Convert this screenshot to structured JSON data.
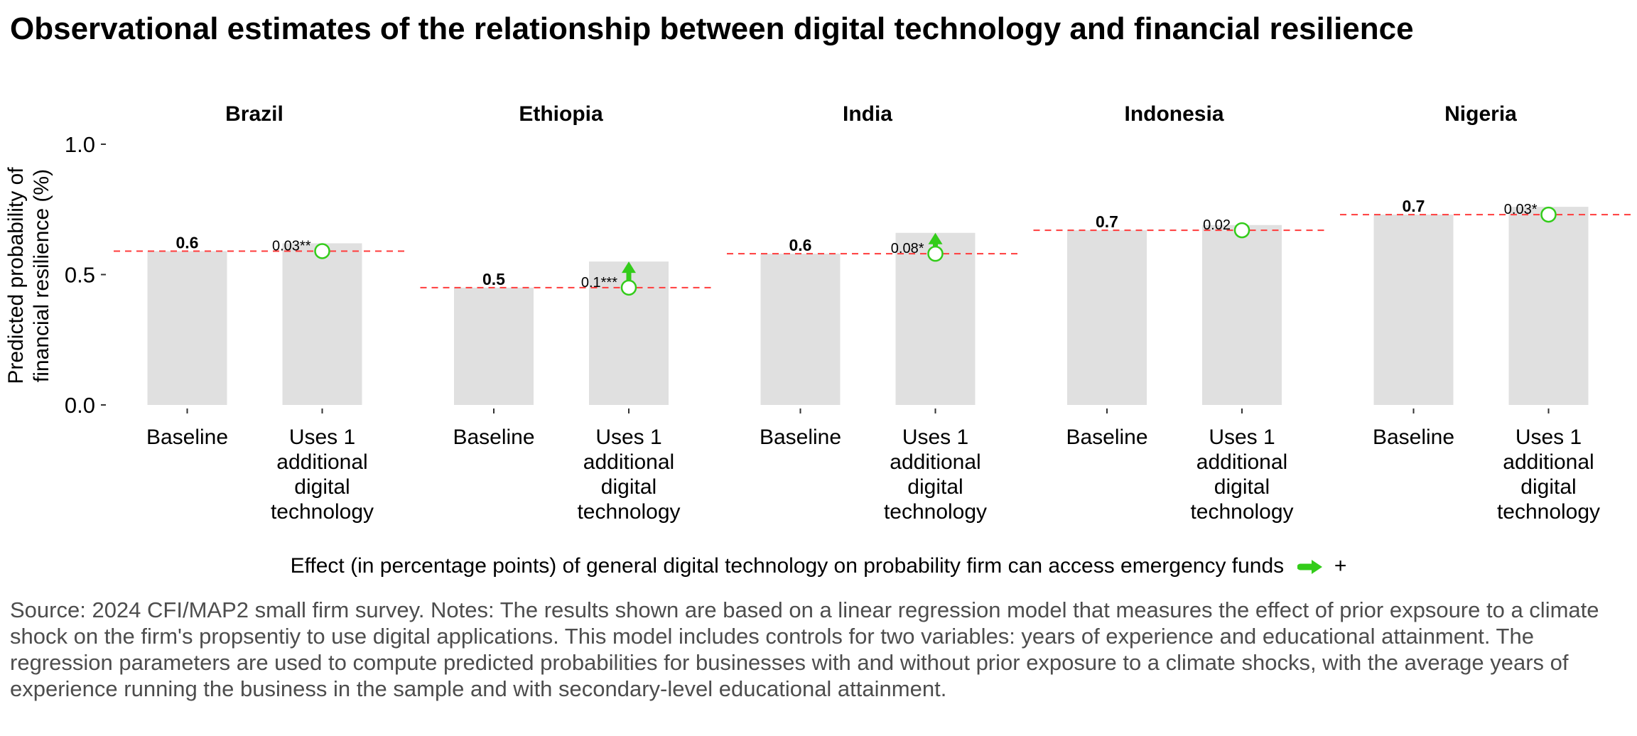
{
  "title": "Observational estimates of the relationship between digital technology and financial resilience",
  "chart_data": {
    "type": "bar",
    "facets": [
      "Brazil",
      "Ethiopia",
      "India",
      "Indonesia",
      "Nigeria"
    ],
    "categories": [
      "Baseline",
      "Uses 1 additional digital technology"
    ],
    "category_lines": {
      "baseline": [
        "Baseline"
      ],
      "treatment": [
        "Uses 1",
        "additional",
        "digital",
        "technology"
      ]
    },
    "series": [
      {
        "country": "Brazil",
        "baseline": 0.59,
        "treatment": 0.62,
        "baseline_label": "0.6",
        "effect_label": "0.03**"
      },
      {
        "country": "Ethiopia",
        "baseline": 0.45,
        "treatment": 0.55,
        "baseline_label": "0.5",
        "effect_label": "0.1***"
      },
      {
        "country": "India",
        "baseline": 0.58,
        "treatment": 0.66,
        "baseline_label": "0.6",
        "effect_label": "0.08*"
      },
      {
        "country": "Indonesia",
        "baseline": 0.67,
        "treatment": 0.69,
        "baseline_label": "0.7",
        "effect_label": "0.02"
      },
      {
        "country": "Nigeria",
        "baseline": 0.73,
        "treatment": 0.76,
        "baseline_label": "0.7",
        "effect_label": "0.03*"
      }
    ],
    "ylabel_lines": [
      "Predicted probability of",
      "financial resilience (%)"
    ],
    "ylim": [
      0,
      1
    ],
    "yticks": [
      0.0,
      0.5,
      1.0
    ],
    "ytick_labels": [
      "0.0",
      "0.5",
      "1.0"
    ],
    "colors": {
      "bar": "#e0e0e0",
      "baseline_line": "#ff3b3b",
      "arrow": "#33cc1a",
      "marker_fill": "#ffffff",
      "marker_stroke": "#33cc1a"
    }
  },
  "legend": {
    "label": "Effect (in percentage points) of general digital technology on probability firm can access emergency funds",
    "sign": "+"
  },
  "notes": "Source: 2024 CFI/MAP2 small firm survey. Notes: The results shown are based on a linear regression model that measures the effect of prior expsoure to a climate shock on the firm's propsentiy to use digital applications. This model includes controls for two variables: years of experience and educational attainment. The regression parameters are used to compute predicted probabilities for businesses with and without prior exposure to a climate shocks, with the average years of experience running the business in the sample and with secondary-level educational attainment."
}
